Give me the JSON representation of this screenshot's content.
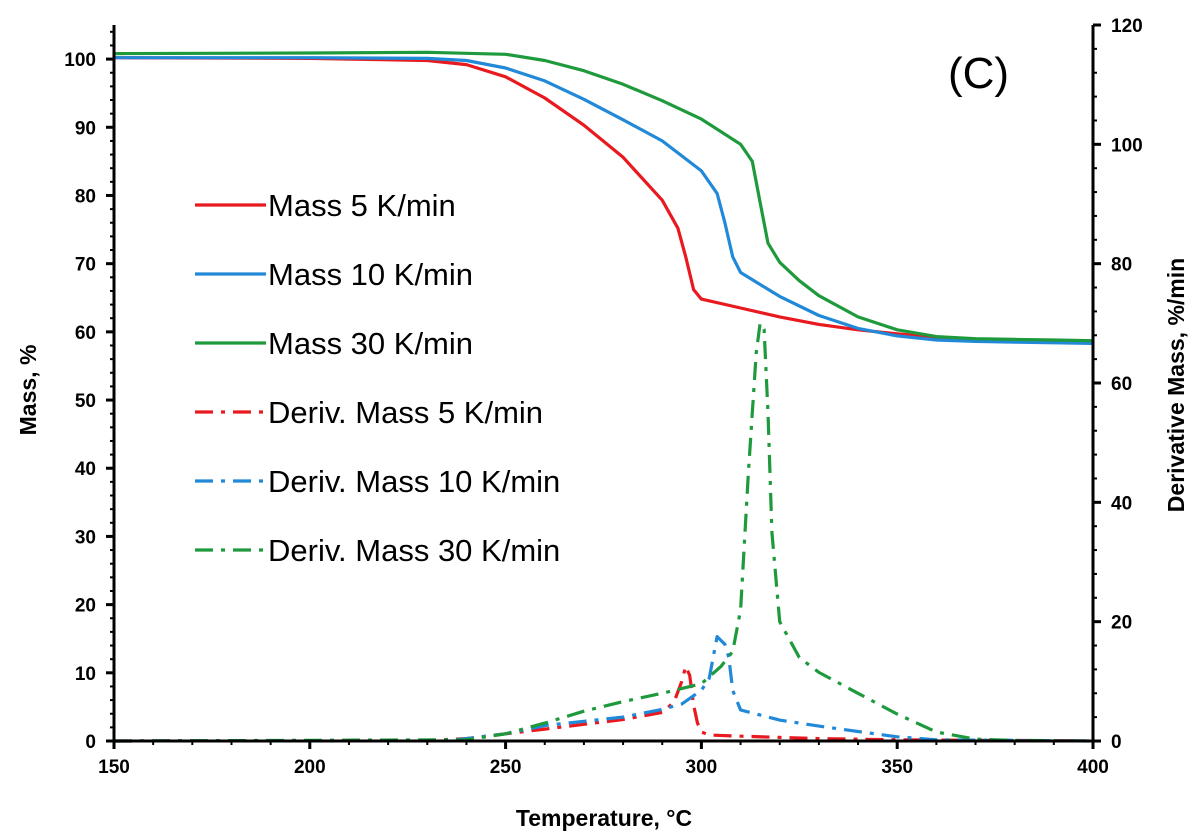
{
  "chart_data": {
    "type": "line",
    "panel_label": "(C)",
    "xlabel": "Temperature, °C",
    "ylabel_left": "Mass, %",
    "ylabel_right": "Derivative Mass, %/min",
    "xlim": [
      150,
      400
    ],
    "ylim_left": [
      0,
      105
    ],
    "ylim_right": [
      0,
      120
    ],
    "x_ticks": [
      150,
      200,
      250,
      300,
      350,
      400
    ],
    "y_ticks_left": [
      0,
      10,
      20,
      30,
      40,
      50,
      60,
      70,
      80,
      90,
      100
    ],
    "y_ticks_right": [
      0,
      20,
      40,
      60,
      80,
      100,
      120
    ],
    "grid": false,
    "legend_position": "upper-left",
    "series": [
      {
        "name": "Mass 5 K/min",
        "axis": "left",
        "style": "solid",
        "color": "#e8191f",
        "x": [
          150,
          200,
          230,
          240,
          250,
          260,
          270,
          280,
          290,
          294,
          296,
          298,
          300,
          310,
          320,
          330,
          340,
          350,
          360,
          370,
          380,
          390,
          400
        ],
        "y": [
          100.2,
          100.1,
          99.8,
          99.2,
          97.4,
          94.3,
          90.3,
          85.6,
          79.3,
          75.2,
          71,
          66.2,
          64.8,
          63.5,
          62.2,
          61.1,
          60.3,
          59.7,
          59.2,
          58.9,
          58.8,
          58.6,
          58.5
        ]
      },
      {
        "name": "Mass 10 K/min",
        "axis": "left",
        "style": "solid",
        "color": "#2189d8",
        "x": [
          150,
          200,
          230,
          240,
          250,
          260,
          270,
          280,
          290,
          300,
          304,
          306,
          308,
          310,
          320,
          330,
          340,
          350,
          360,
          370,
          380,
          390,
          400
        ],
        "y": [
          100.2,
          100.2,
          100.1,
          99.8,
          98.7,
          96.8,
          94.1,
          91.1,
          88,
          83.6,
          80.3,
          76,
          71,
          68.7,
          65.2,
          62.4,
          60.5,
          59.4,
          58.8,
          58.6,
          58.5,
          58.4,
          58.3
        ]
      },
      {
        "name": "Mass 30 K/min",
        "axis": "left",
        "style": "solid",
        "color": "#1e9a3c",
        "x": [
          150,
          200,
          230,
          250,
          260,
          270,
          280,
          290,
          300,
          310,
          313,
          315,
          317,
          320,
          325,
          330,
          340,
          350,
          360,
          370,
          380,
          390,
          400
        ],
        "y": [
          100.8,
          100.9,
          101,
          100.7,
          99.8,
          98.3,
          96.3,
          93.9,
          91.2,
          87.5,
          85,
          79,
          73,
          70.2,
          67.5,
          65.3,
          62.2,
          60.3,
          59.3,
          59,
          58.9,
          58.8,
          58.7
        ]
      },
      {
        "name": "Deriv. Mass 5 K/min",
        "axis": "right",
        "style": "dashdot",
        "color": "#e8191f",
        "x": [
          150,
          230,
          240,
          250,
          260,
          270,
          280,
          290,
          293,
          295,
          296,
          297,
          298,
          299,
          300,
          302,
          310,
          320,
          330,
          340,
          350,
          400
        ],
        "y": [
          0,
          0.1,
          0.4,
          1.2,
          2,
          2.8,
          3.6,
          4.8,
          6.5,
          10,
          12.5,
          11,
          6,
          3,
          1.5,
          1,
          0.8,
          0.6,
          0.4,
          0.3,
          0.2,
          0
        ]
      },
      {
        "name": "Deriv. Mass 10 K/min",
        "axis": "right",
        "style": "dashdot",
        "color": "#2189d8",
        "x": [
          150,
          235,
          240,
          250,
          260,
          270,
          280,
          290,
          295,
          300,
          302,
          304,
          306,
          307,
          308,
          310,
          320,
          330,
          340,
          350,
          360,
          400
        ],
        "y": [
          0,
          0.1,
          0.4,
          1.2,
          2.6,
          3.3,
          4,
          5.3,
          6.2,
          8.5,
          10.5,
          17.5,
          16.2,
          14,
          8.5,
          5.2,
          3.5,
          2.5,
          1.6,
          0.7,
          0.2,
          0
        ]
      },
      {
        "name": "Deriv. Mass 30 K/min",
        "axis": "right",
        "style": "dashdot",
        "color": "#1e9a3c",
        "x": [
          150,
          240,
          250,
          260,
          270,
          280,
          290,
          300,
          305,
          308,
          310,
          312,
          314,
          315,
          316,
          317,
          318,
          320,
          325,
          330,
          340,
          350,
          360,
          370,
          380,
          400
        ],
        "y": [
          0,
          0.2,
          1.2,
          3,
          5,
          6.6,
          8,
          9.6,
          12.5,
          15,
          22,
          45,
          65,
          70,
          69,
          55,
          35,
          20,
          14,
          11.5,
          8,
          4.5,
          1.5,
          0.3,
          0.1,
          0
        ]
      }
    ]
  }
}
